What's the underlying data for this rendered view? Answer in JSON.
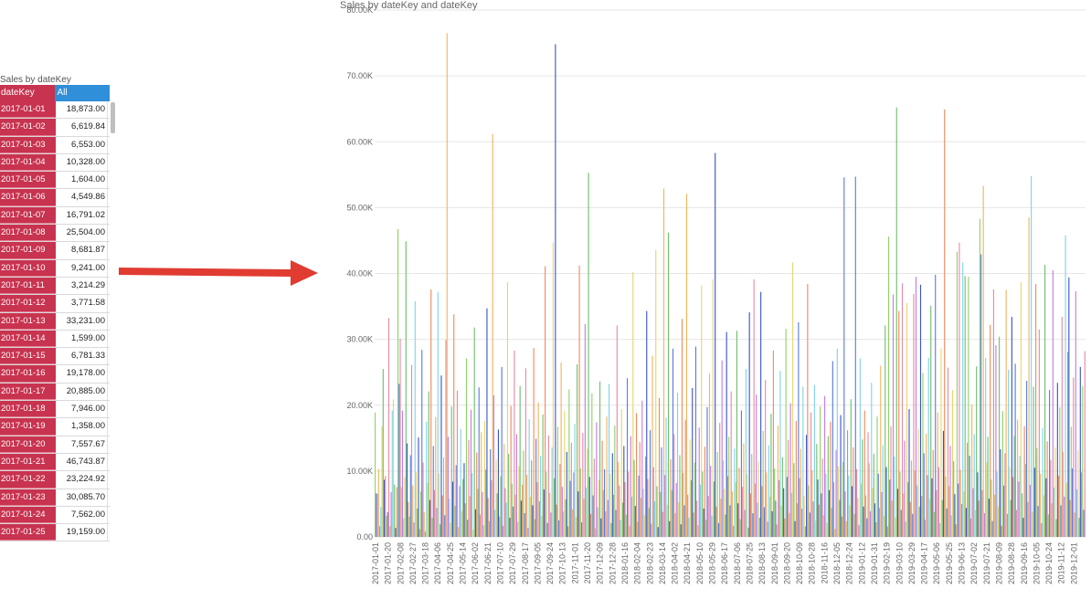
{
  "table": {
    "title": "Sales by dateKey",
    "header_left": "dateKey",
    "header_right": "All",
    "rows": [
      {
        "date": "2017-01-01",
        "value": "18,873.00"
      },
      {
        "date": "2017-01-02",
        "value": "6,619.84"
      },
      {
        "date": "2017-01-03",
        "value": "6,553.00"
      },
      {
        "date": "2017-01-04",
        "value": "10,328.00"
      },
      {
        "date": "2017-01-05",
        "value": "1,604.00"
      },
      {
        "date": "2017-01-06",
        "value": "4,549.86"
      },
      {
        "date": "2017-01-07",
        "value": "16,791.02"
      },
      {
        "date": "2017-01-08",
        "value": "25,504.00"
      },
      {
        "date": "2017-01-09",
        "value": "8,681.87"
      },
      {
        "date": "2017-01-10",
        "value": "9,241.00"
      },
      {
        "date": "2017-01-11",
        "value": "3,214.29"
      },
      {
        "date": "2017-01-12",
        "value": "3,771.58"
      },
      {
        "date": "2017-01-13",
        "value": "33,231.00"
      },
      {
        "date": "2017-01-14",
        "value": "1,599.00"
      },
      {
        "date": "2017-01-15",
        "value": "6,781.33"
      },
      {
        "date": "2017-01-16",
        "value": "19,178.00"
      },
      {
        "date": "2017-01-17",
        "value": "20,885.00"
      },
      {
        "date": "2017-01-18",
        "value": "7,946.00"
      },
      {
        "date": "2017-01-19",
        "value": "1,358.00"
      },
      {
        "date": "2017-01-20",
        "value": "7,557.67"
      },
      {
        "date": "2017-01-21",
        "value": "46,743.87"
      },
      {
        "date": "2017-01-22",
        "value": "23,224.92"
      },
      {
        "date": "2017-01-23",
        "value": "30,085.70"
      },
      {
        "date": "2017-01-24",
        "value": "7,562.00"
      },
      {
        "date": "2017-01-25",
        "value": "19,159.00"
      }
    ]
  },
  "colors": {
    "date_cell": "#c8334f",
    "header_all": "#2f8fd8",
    "arrow": "#e03c31",
    "palette": [
      "#8fd16b",
      "#5b7be0",
      "#e88aa4",
      "#f2b45c",
      "#c17de0",
      "#7fd3e8",
      "#e8d56a",
      "#6fbf6f",
      "#3b55c9",
      "#f08a5d"
    ]
  },
  "chart_data": {
    "type": "bar",
    "title": "Sales by dateKey and dateKey",
    "xlabel": "",
    "ylabel": "",
    "ylim": [
      0,
      80000
    ],
    "y_ticks": [
      0,
      10000,
      20000,
      30000,
      40000,
      50000,
      60000,
      70000,
      80000
    ],
    "y_tick_labels": [
      "0.00",
      "10.00K",
      "20.00K",
      "30.00K",
      "40.00K",
      "50.00K",
      "60.00K",
      "70.00K",
      "80.00K"
    ],
    "grid": true,
    "x_tick_labels": [
      "2017-01-01",
      "2017-01-20",
      "2017-02-08",
      "2017-02-27",
      "2017-03-18",
      "2017-04-06",
      "2017-04-25",
      "2017-05-14",
      "2017-06-02",
      "2017-06-21",
      "2017-07-10",
      "2017-07-29",
      "2017-08-17",
      "2017-09-05",
      "2017-09-24",
      "2017-10-13",
      "2017-11-01",
      "2017-11-20",
      "2017-12-09",
      "2017-12-28",
      "2018-01-16",
      "2018-02-04",
      "2018-02-23",
      "2018-03-14",
      "2018-04-02",
      "2018-04-21",
      "2018-05-10",
      "2018-05-29",
      "2018-06-17",
      "2018-07-06",
      "2018-07-25",
      "2018-08-13",
      "2018-09-01",
      "2018-09-20",
      "2018-10-09",
      "2018-10-28",
      "2018-11-16",
      "2018-12-05",
      "2018-12-24",
      "2019-01-12",
      "2019-01-31",
      "2019-02-19",
      "2019-03-10",
      "2019-03-29",
      "2019-04-17",
      "2019-05-06",
      "2019-05-25",
      "2019-06-13",
      "2019-07-02",
      "2019-07-21",
      "2019-08-09",
      "2019-08-28",
      "2019-09-16",
      "2019-10-05",
      "2019-10-24",
      "2019-11-12",
      "2019-12-01"
    ],
    "tick_interval_days": 19,
    "values": [
      18873,
      6620,
      6553,
      10328,
      1604,
      4550,
      16791,
      25504,
      8682,
      9241,
      3214,
      3772,
      33231,
      1599,
      6781,
      19178,
      20885,
      7946,
      1358,
      7558,
      46744,
      23225,
      30086,
      7562,
      19159,
      2840,
      9120,
      44900,
      14200,
      5300,
      3100,
      12400,
      26100,
      7800,
      2200,
      35800,
      9800,
      4300,
      15100,
      1200,
      6900,
      28400,
      11300,
      3800,
      800,
      17500,
      8200,
      22100,
      5600,
      37600,
      2900,
      13800,
      7100,
      18200,
      4400,
      37200,
      9600,
      1900,
      24500,
      6300,
      12100,
      3300,
      29900,
      76500,
      15200,
      5800,
      2100,
      19800,
      8400,
      33800,
      4700,
      10900,
      22200,
      1500,
      7700,
      16400,
      3900,
      8800,
      11200,
      5100,
      27100,
      2600,
      14700,
      6200,
      19300,
      9700,
      1100,
      31800,
      4200,
      12800,
      7300,
      22700,
      3400,
      15900,
      6800,
      1800,
      17600,
      10200,
      34700,
      5900,
      2400,
      13300,
      8600,
      61200,
      21500,
      4100,
      11800,
      6600,
      16300,
      3100,
      9200,
      25800,
      1700,
      14100,
      7400,
      5200,
      38700,
      12600,
      2900,
      19900,
      8100,
      4600,
      28300,
      6400,
      15600,
      2300,
      10700,
      22900,
      5500,
      7900,
      13100,
      3600,
      25600,
      9400,
      1400,
      17900,
      6100,
      11600,
      4800,
      28700,
      2700,
      14900,
      8300,
      20400,
      5400,
      12300,
      3200,
      18600,
      7200,
      41100,
      9900,
      2100,
      15400,
      6700,
      3700,
      13600,
      44700,
      8900,
      74800,
      4900,
      16700,
      2500,
      11100,
      26500,
      7600,
      3900,
      19100,
      5700,
      12900,
      1600,
      22400,
      8500,
      14300,
      4200,
      9800,
      17200,
      3000,
      26200,
      6900,
      41200,
      10400,
      2200,
      15800,
      5800,
      32300,
      7500,
      13400,
      55300,
      9100,
      3500,
      21800,
      6300,
      11900,
      1300,
      17400,
      4500,
      8700,
      23600,
      2800,
      14600,
      7100,
      10300,
      3900,
      18300,
      5600,
      23200,
      9600,
      2100,
      12700,
      6400,
      16900,
      4100,
      32100,
      11400,
      7800,
      2600,
      19400,
      5200,
      13800,
      8300,
      3400,
      24100,
      9900,
      1700,
      15300,
      6100,
      40200,
      11700,
      4700,
      18800,
      2300,
      9300,
      14400,
      5900,
      20700,
      7300,
      3300,
      12200,
      34300,
      8800,
      4400,
      16200,
      2000,
      27500,
      10600,
      5400,
      43600,
      7700,
      1500,
      21100,
      6800,
      13600,
      3800,
      52900,
      9400,
      18100,
      4900,
      46200,
      2400,
      11800,
      7100,
      28600,
      15600,
      3600,
      8200,
      21900,
      5300,
      12400,
      1900,
      33100,
      9700,
      4800,
      17800,
      52100,
      6400,
      2900,
      14800,
      8600,
      22600,
      3700,
      11300,
      28900,
      5500,
      1800,
      16600,
      7900,
      38200,
      9900,
      4300,
      13700,
      2600,
      19700,
      6200,
      24800,
      10800,
      3200,
      39100,
      8400,
      58300,
      4600,
      12900,
      2100,
      17300,
      5800,
      26800,
      11600,
      7300,
      3400,
      31100,
      9200,
      15200,
      4800,
      22100,
      6900,
      1700,
      13400,
      8300,
      31300,
      5100,
      10500,
      2700,
      19200,
      7600,
      14200,
      4100,
      25500,
      9500,
      1400,
      34100,
      6600,
      12600,
      3600,
      39100,
      8100,
      21600,
      5200,
      11500,
      2900,
      37200,
      7700,
      16100,
      4500,
      23800,
      9800,
      2300,
      13900,
      6100,
      18700,
      3900,
      28300,
      10400,
      5500,
      1900,
      16900,
      8600,
      25200,
      4700,
      12100,
      7400,
      2800,
      31600,
      9100,
      14700,
      3600,
      20300,
      6700,
      41700,
      11200,
      2400,
      17600,
      5100,
      32600,
      8900,
      13400,
      4300,
      22800,
      6200,
      1600,
      15500,
      38400,
      7800,
      3700,
      18900,
      10100,
      5400,
      23100,
      2500,
      14100,
      8700,
      4900,
      19800,
      6600,
      11900,
      3300,
      21400,
      9600,
      2100,
      15300,
      7100,
      17500,
      4400,
      26700,
      8300,
      1200,
      13200,
      28600,
      10700,
      5600,
      18500,
      3100,
      11400,
      54600,
      6900,
      2400,
      16200,
      9300,
      4800,
      20900,
      7700,
      13600,
      3500,
      54700,
      10300,
      5900,
      1800,
      27100,
      8100,
      14800,
      4600,
      19200,
      6300,
      2800,
      15900,
      11200,
      3900,
      23400,
      7400,
      12600,
      5100,
      2200,
      18300,
      9600,
      4400,
      26000,
      6800,
      13900,
      3200,
      32100,
      10600,
      1600,
      45600,
      8700,
      16800,
      5500,
      36800,
      12200,
      2900,
      65200,
      7300,
      34300,
      9900,
      4100,
      38500,
      6600,
      14600,
      2300,
      35500,
      8300,
      19400,
      5300,
      11600,
      3500,
      36900,
      10100,
      39500,
      7800,
      16400,
      4600,
      38300,
      6200,
      24900,
      12700,
      2600,
      15700,
      9400,
      27200,
      5800,
      35100,
      8900,
      13200,
      3800,
      39800,
      7100,
      18900,
      10600,
      2100,
      28600,
      5600,
      16100,
      64900,
      9200,
      4300,
      25700,
      7700,
      13800,
      3300,
      22300,
      11500,
      6500,
      1900,
      43300,
      8100,
      44700,
      10200,
      5000,
      41700,
      6900,
      39600,
      4400,
      14300,
      39500,
      12300,
      2800,
      20100,
      7400,
      15600,
      4100,
      25900,
      9800,
      5500,
      48300,
      42900,
      7100,
      53300,
      3600,
      27200,
      11300,
      15200,
      5800,
      32200,
      8700,
      2400,
      37600,
      6400,
      29100,
      9900,
      4600,
      30400,
      13300,
      1700,
      19100,
      7800,
      12700,
      37500,
      3500,
      25400,
      10600,
      5600,
      33400,
      9100,
      15300,
      26300,
      4100,
      17800,
      8400,
      12300,
      38700,
      6600,
      2900,
      16800,
      11100,
      23700,
      5300,
      48500,
      7900,
      54800,
      3800,
      22800,
      10500,
      38400,
      13500,
      4700,
      31500,
      9600,
      2100,
      16500,
      6300,
      41300,
      8900,
      14500,
      3400,
      22300,
      11700,
      5100,
      40500,
      7500,
      13600,
      2700,
      23400,
      9300,
      19700,
      4800,
      33400,
      12900,
      6100,
      45800,
      8200,
      28100,
      39400,
      5600,
      16700,
      10400,
      24200,
      3700,
      37300,
      7200,
      13200,
      2900,
      25800,
      9800,
      22900,
      4100,
      28200
    ]
  }
}
